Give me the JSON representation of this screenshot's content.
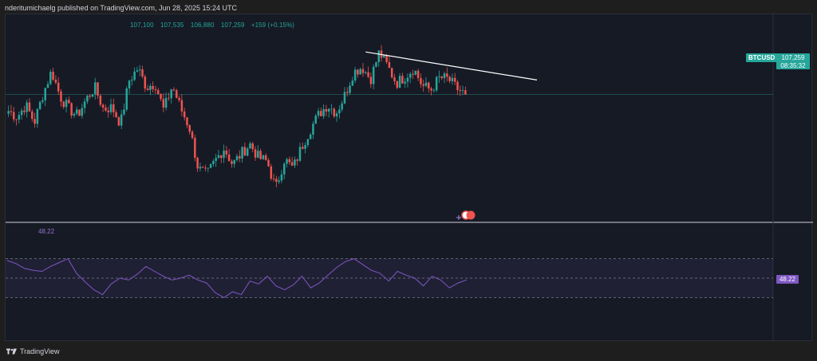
{
  "header": {
    "publisher": "nderitumichaelg published on TradingView.com, Jun 28, 2025 15:24 UTC"
  },
  "ohlc": {
    "open": "107,100",
    "high": "107,535",
    "low": "106,880",
    "close": "107,259",
    "change": "+159 (+0.15%)"
  },
  "price_scale": {
    "symbol": "BTCUSD",
    "last_price": "107,259",
    "countdown": "08:35:32"
  },
  "rsi_panel": {
    "value_label": "48.22",
    "scale_tag": "48.22"
  },
  "footer": {
    "brand": "TradingView"
  },
  "colors": {
    "up": "#26a69a",
    "down": "#ef5350",
    "rsi": "#7e57c2",
    "trendline": "#ffffff"
  },
  "icons": [
    "tradingview-logo-icon",
    "event-flag-icon"
  ],
  "chart_data": [
    {
      "type": "candlestick",
      "symbol": "BTCUSD",
      "title": "",
      "ylim": [
        98000,
        112000
      ],
      "last_price": 107259,
      "trendline": {
        "from_index": 0.78,
        "to_index": 1.0,
        "from_value": 110400,
        "to_value": 108800
      },
      "close_path": [
        106050,
        105600,
        106500,
        105200,
        107300,
        109000,
        107100,
        106200,
        105700,
        106900,
        107800,
        106200,
        106300,
        105100,
        108300,
        109200,
        107800,
        108100,
        106100,
        107900,
        106200,
        104800,
        101800,
        101300,
        102400,
        103300,
        102100,
        102900,
        103600,
        102600,
        102300,
        100300,
        102500,
        101800,
        103400,
        104700,
        105800,
        106500,
        105900,
        107200,
        108900,
        109300,
        108400,
        110400,
        109300,
        108100,
        108600,
        109200,
        107900,
        107600,
        108500,
        108400,
        107700,
        107259
      ],
      "grid": false
    },
    {
      "type": "line",
      "name": "RSI",
      "ylim": [
        0,
        100
      ],
      "bands": [
        30,
        50,
        70
      ],
      "last_value": 48.22,
      "values": [
        68,
        65,
        60,
        58,
        57,
        62,
        66,
        70,
        55,
        46,
        38,
        33,
        44,
        50,
        48,
        54,
        62,
        57,
        52,
        48,
        50,
        53,
        48,
        45,
        35,
        30,
        36,
        33,
        47,
        44,
        52,
        42,
        38,
        43,
        52,
        40,
        45,
        53,
        61,
        67,
        70,
        64,
        58,
        55,
        47,
        57,
        53,
        50,
        42,
        52,
        48,
        40,
        45,
        48.22
      ],
      "grid": false
    }
  ]
}
